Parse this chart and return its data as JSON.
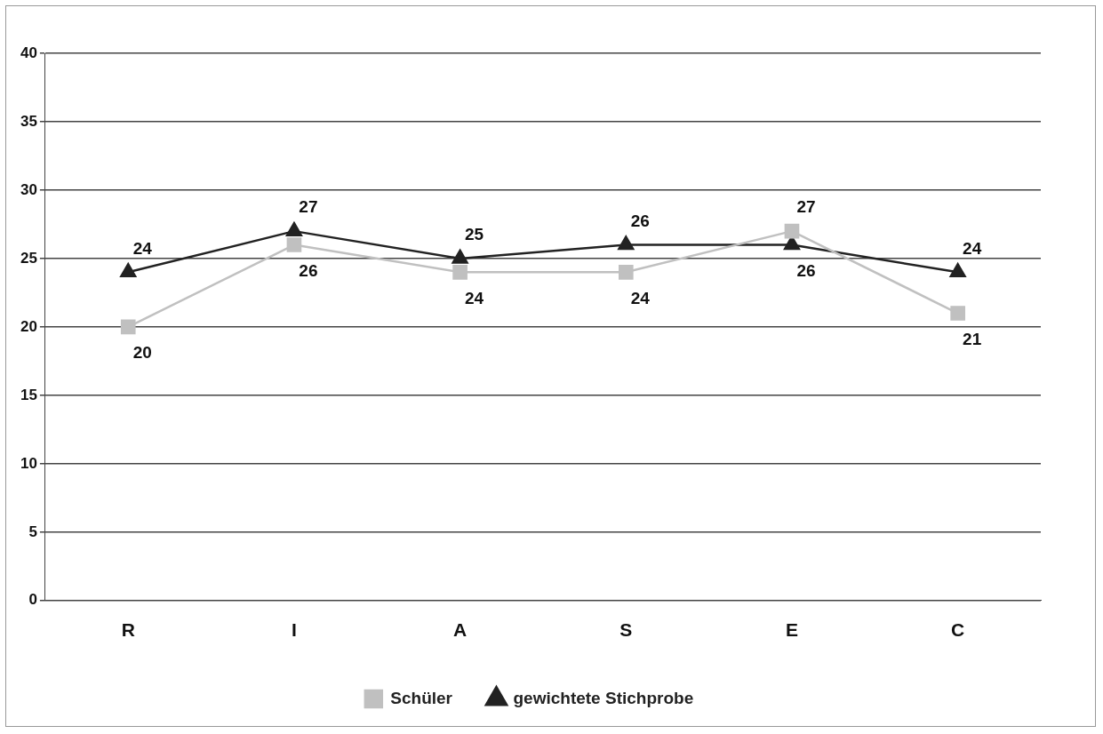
{
  "chart_data": {
    "type": "line",
    "categories": [
      "R",
      "I",
      "A",
      "S",
      "E",
      "C"
    ],
    "series": [
      {
        "name": "Schüler",
        "color": "#c0c0c0",
        "marker": "square",
        "values": [
          20,
          26,
          24,
          24,
          27,
          21
        ]
      },
      {
        "name": "gewichtete Stichprobe",
        "color": "#222222",
        "marker": "triangle",
        "values": [
          24,
          27,
          25,
          26,
          26,
          24
        ]
      }
    ],
    "ylim": [
      0,
      40
    ],
    "yticks": [
      0,
      5,
      10,
      15,
      20,
      25,
      30,
      35,
      40
    ],
    "grid": "y",
    "legend": "bottom",
    "data_labels": true,
    "line_style": "solid"
  }
}
